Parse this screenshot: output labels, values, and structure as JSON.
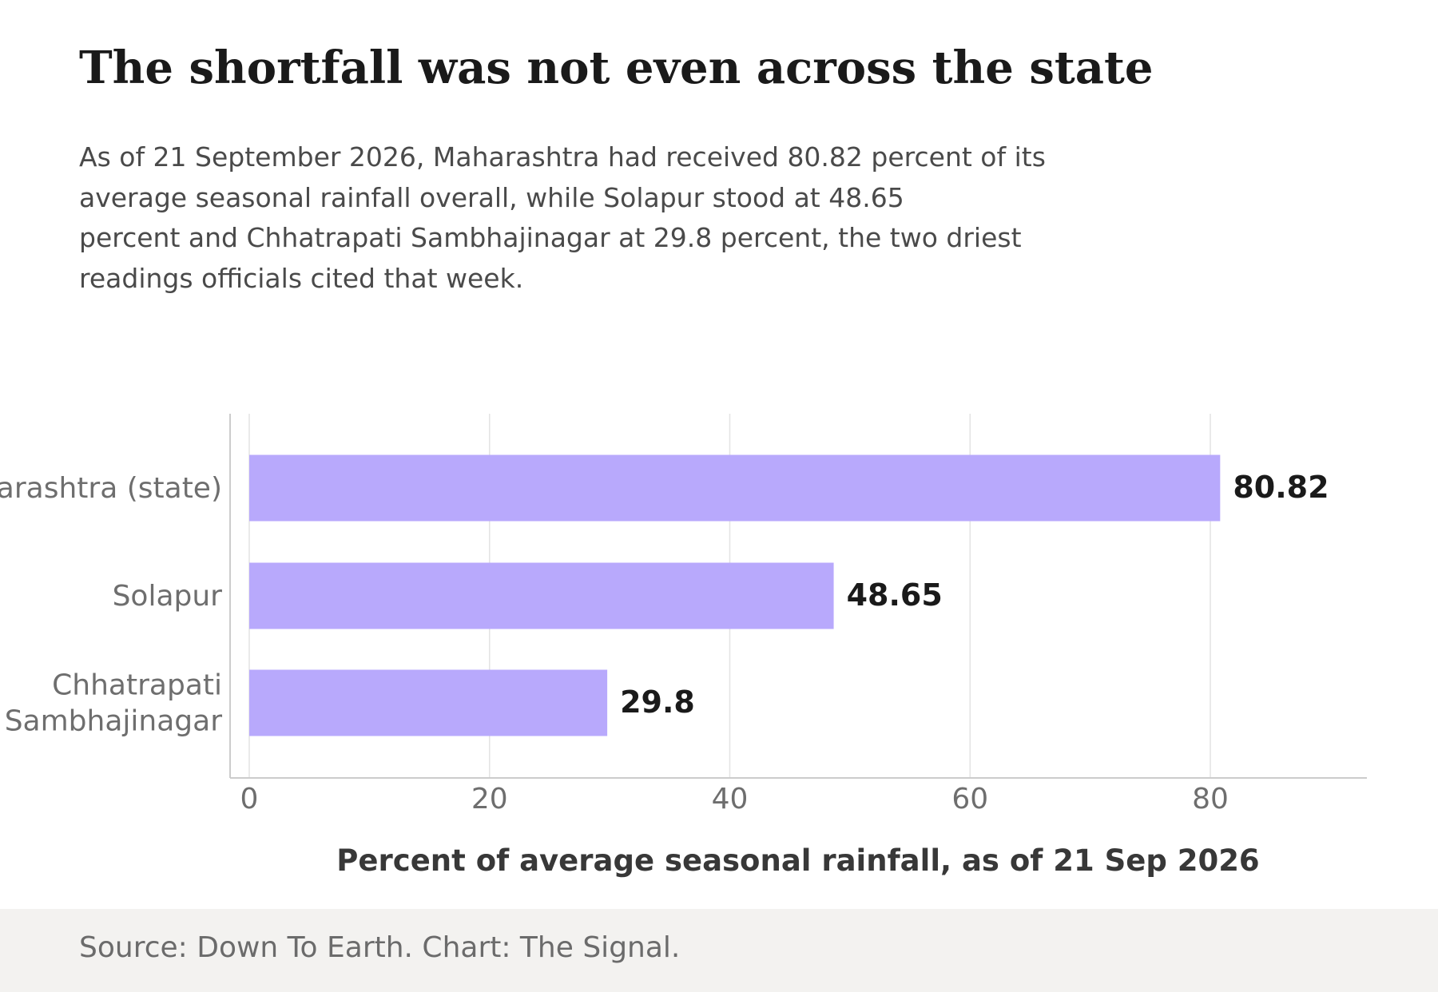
{
  "header": {
    "title": "The shortfall was not even across the state",
    "subtitle_lines": [
      "As of 21 September 2026, Maharashtra had received 80.82 percent of its",
      "average seasonal rainfall overall, while Solapur stood at 48.65",
      "percent and Chhatrapati Sambhajinagar at 29.8 percent, the two driest",
      "readings officials cited that week."
    ]
  },
  "footer": {
    "source": "Source: Down To Earth. Chart: The Signal."
  },
  "colors": {
    "bar": "#b8a9fc",
    "grid": "#e3e3e3",
    "axis": "#cccccc",
    "tick_text": "#6e6e6e",
    "value_text": "#1a1a1a",
    "axis_title": "#383838",
    "footer_bg": "#f3f2f0"
  },
  "chart_data": {
    "type": "bar",
    "orientation": "horizontal",
    "categories": [
      [
        "Maharashtra (state)"
      ],
      [
        "Solapur"
      ],
      [
        "Chhatrapati",
        "Sambhajinagar"
      ]
    ],
    "values": [
      80.82,
      48.65,
      29.8
    ],
    "value_labels": [
      "80.82",
      "48.65",
      "29.8"
    ],
    "xlabel": "Percent of average seasonal rainfall, as of 21 Sep 2026",
    "ylabel": "",
    "xlim": [
      0,
      93
    ],
    "xticks": [
      0,
      20,
      40,
      60,
      80
    ],
    "grid": "vertical"
  }
}
